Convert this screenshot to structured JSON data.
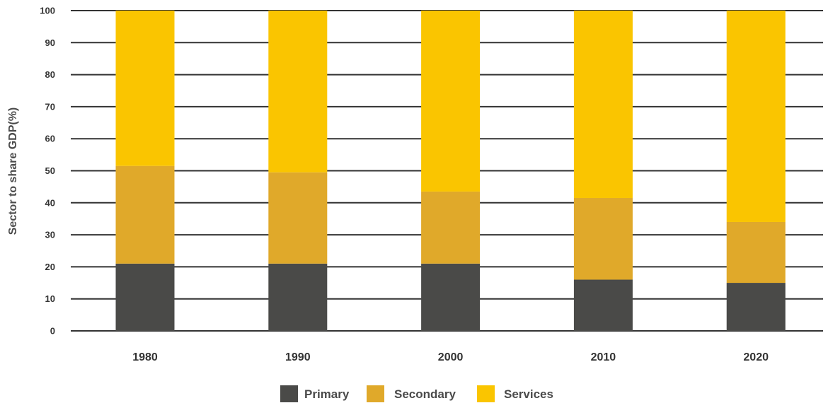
{
  "chart_data": {
    "type": "bar",
    "stacked": true,
    "categories": [
      "1980",
      "1990",
      "2000",
      "2010",
      "2020"
    ],
    "series": [
      {
        "name": "Primary",
        "color": "#4a4a48",
        "values": [
          21,
          21,
          21,
          16,
          15
        ]
      },
      {
        "name": "Secondary",
        "color": "#e0a92a",
        "values": [
          30.5,
          28.5,
          22.5,
          25.5,
          19
        ]
      },
      {
        "name": "Services",
        "color": "#fac500",
        "values": [
          48.5,
          50.5,
          56.5,
          58.5,
          66
        ]
      }
    ],
    "ylabel": "Sector to share GDP(%)",
    "xlabel": "",
    "ylim": [
      0,
      100
    ],
    "yticks": [
      0,
      10,
      20,
      30,
      40,
      50,
      60,
      70,
      80,
      90,
      100
    ],
    "grid": true,
    "legend_position": "bottom"
  }
}
